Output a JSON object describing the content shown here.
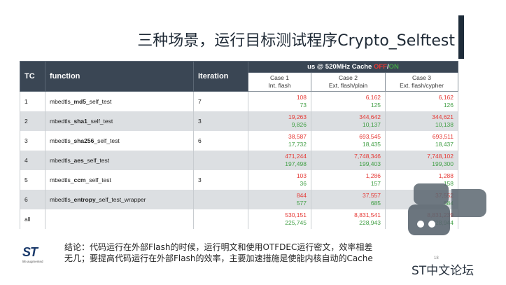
{
  "title": "三种场景，运行目标测试程序Crypto_Selftest",
  "table": {
    "headers": {
      "tc": "TC",
      "function": "function",
      "iteration": "Iteration",
      "us_prefix": "us @ 520MHz    Cache ",
      "off": "OFF",
      "slash": "/",
      "on": "ON"
    },
    "cases": [
      {
        "l1": "Case 1",
        "l2": "Int. flash"
      },
      {
        "l1": "Case 2",
        "l2": "Ext. flash/plain"
      },
      {
        "l1": "Case 3",
        "l2": "Ext. flash/cypher"
      }
    ],
    "rows": [
      {
        "tc": "1",
        "pre": "mbedtls_",
        "bold": "md5",
        "post": "_self_test",
        "iter": "7",
        "c1": [
          "108",
          "73"
        ],
        "c2": [
          "6,162",
          "125"
        ],
        "c3": [
          "6,162",
          "126"
        ]
      },
      {
        "tc": "2",
        "pre": "mbedtls_",
        "bold": "sha1",
        "post": "_self_test",
        "iter": "3",
        "c1": [
          "19,263",
          "9,826"
        ],
        "c2": [
          "344,642",
          "10,137"
        ],
        "c3": [
          "344,621",
          "10,138"
        ]
      },
      {
        "tc": "3",
        "pre": "mbedtls_",
        "bold": "sha256",
        "post": "_self_test",
        "iter": "6",
        "c1": [
          "38,587",
          "17,732"
        ],
        "c2": [
          "693,545",
          "18,435"
        ],
        "c3": [
          "693,511",
          "18,437"
        ]
      },
      {
        "tc": "4",
        "pre": "mbedtls_",
        "bold": "aes",
        "post": "_self_test",
        "iter": "",
        "c1": [
          "471,244",
          "197,498"
        ],
        "c2": [
          "7,748,346",
          "199,403"
        ],
        "c3": [
          "7,748,102",
          "199,300"
        ]
      },
      {
        "tc": "5",
        "pre": "mbedtls_",
        "bold": "ccm",
        "post": "_self_test",
        "iter": "3",
        "c1": [
          "103",
          "36"
        ],
        "c2": [
          "1,286",
          "157"
        ],
        "c3": [
          "1,288",
          "158"
        ]
      },
      {
        "tc": "6",
        "pre": "mbedtls_",
        "bold": "entropy",
        "post": "_self_test_wrapper",
        "iter": "",
        "c1": [
          "844",
          "577"
        ],
        "c2": [
          "37,557",
          "685"
        ],
        "c3": [
          "37,552",
          "684"
        ]
      },
      {
        "tc": "all",
        "pre": "",
        "bold": "",
        "post": "",
        "iter": "",
        "c1": [
          "530,151",
          "225,745"
        ],
        "c2": [
          "8,831,541",
          "228,943"
        ],
        "c3": [
          "8,831,239",
          "228,944"
        ]
      }
    ]
  },
  "conclusion": {
    "line1": "结论：代码运行在外部Flash的时候，运行明文和使用OTFDEC运行密文，效率相差",
    "line2": "无几；要提高代码运行在外部Flash的效率，主要加速措施是使能内核自动的Cache"
  },
  "logo": {
    "mark": "ST",
    "tagline": "life.augmented"
  },
  "page_number": "18",
  "watermark": "ST中文论坛"
}
